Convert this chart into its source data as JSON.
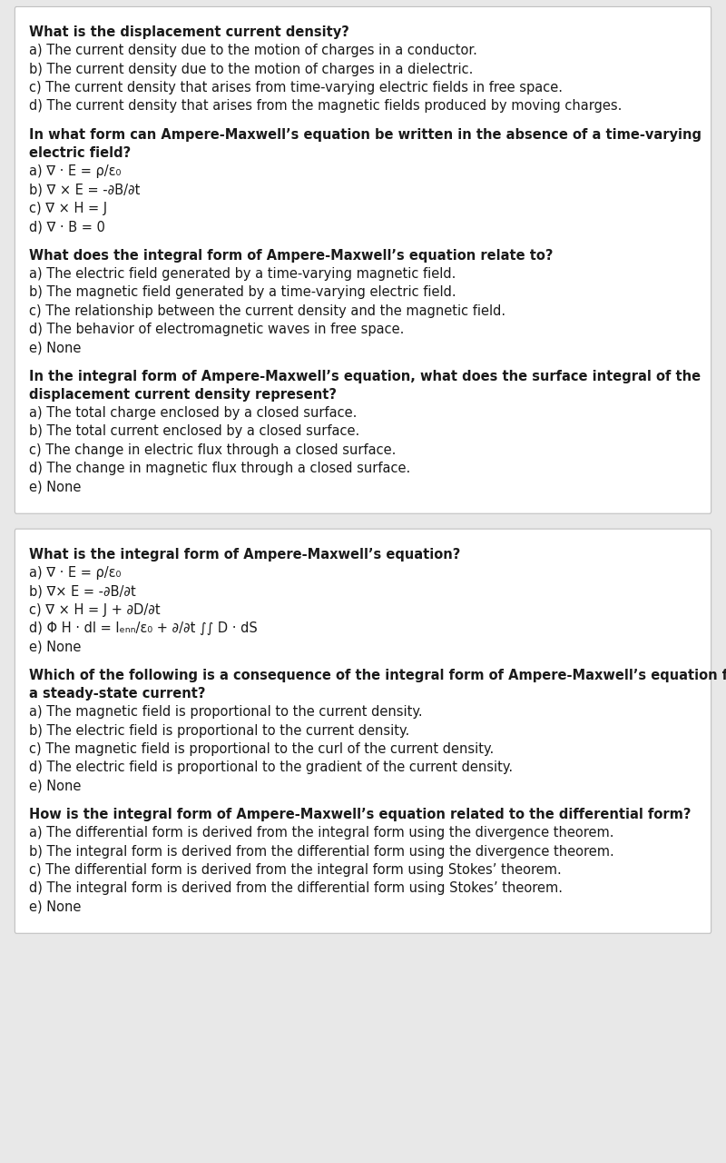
{
  "bg_color": "#e8e8e8",
  "box1_color": "#ffffff",
  "box2_color": "#ffffff",
  "text_color": "#1a1a1a",
  "font_size": 10.5,
  "box1_content": [
    {
      "text": "What is the displacement current density?",
      "bold": true
    },
    {
      "text": "a) The current density due to the motion of charges in a conductor.",
      "bold": false
    },
    {
      "text": "b) The current density due to the motion of charges in a dielectric.",
      "bold": false
    },
    {
      "text": "c) The current density that arises from time-varying electric fields in free space.",
      "bold": false
    },
    {
      "text": "d) The current density that arises from the magnetic fields produced by moving charges.",
      "bold": false
    },
    {
      "text": "",
      "bold": false
    },
    {
      "text": "In what form can Ampere-Maxwell’s equation be written in the absence of a time-varying electric field?",
      "bold": true
    },
    {
      "text": "a) ∇ · E = ρ/ε₀",
      "bold": false
    },
    {
      "text": "b) ∇ × E = -∂B/∂t",
      "bold": false
    },
    {
      "text": "c) ∇ × H = J",
      "bold": false
    },
    {
      "text": "d) ∇ · B = 0",
      "bold": false
    },
    {
      "text": "",
      "bold": false
    },
    {
      "text": "What does the integral form of Ampere-Maxwell’s equation relate to?",
      "bold": true
    },
    {
      "text": "a) The electric field generated by a time-varying magnetic field.",
      "bold": false
    },
    {
      "text": "b) The magnetic field generated by a time-varying electric field.",
      "bold": false
    },
    {
      "text": "c) The relationship between the current density and the magnetic field.",
      "bold": false
    },
    {
      "text": "d) The behavior of electromagnetic waves in free space.",
      "bold": false
    },
    {
      "text": "e) None",
      "bold": false
    },
    {
      "text": "",
      "bold": false
    },
    {
      "text": "In the integral form of Ampere-Maxwell’s equation, what does the surface integral of the displacement current density represent?",
      "bold": true
    },
    {
      "text": "a) The total charge enclosed by a closed surface.",
      "bold": false
    },
    {
      "text": "b) The total current enclosed by a closed surface.",
      "bold": false
    },
    {
      "text": "c) The change in electric flux through a closed surface.",
      "bold": false
    },
    {
      "text": "d) The change in magnetic flux through a closed surface.",
      "bold": false
    },
    {
      "text": "e) None",
      "bold": false
    }
  ],
  "box2_content": [
    {
      "text": "What is the integral form of Ampere-Maxwell’s equation?",
      "bold": true
    },
    {
      "text": "a) ∇ · E = ρ/ε₀",
      "bold": false
    },
    {
      "text": "b) ∇× E = -∂B/∂t",
      "bold": false
    },
    {
      "text": "c) ∇ × H = J + ∂D/∂t",
      "bold": false
    },
    {
      "text": "d) Φ H · dl = Iₑₙₙ/ε₀ + ∂/∂t ∫∫ D · dS",
      "bold": false
    },
    {
      "text": "e) None",
      "bold": false
    },
    {
      "text": "",
      "bold": false
    },
    {
      "text": "Which of the following is a consequence of the integral form of Ampere-Maxwell’s equation for a steady-state current?",
      "bold": true
    },
    {
      "text": "a) The magnetic field is proportional to the current density.",
      "bold": false
    },
    {
      "text": "b) The electric field is proportional to the current density.",
      "bold": false
    },
    {
      "text": "c) The magnetic field is proportional to the curl of the current density.",
      "bold": false
    },
    {
      "text": "d) The electric field is proportional to the gradient of the current density.",
      "bold": false
    },
    {
      "text": "e) None",
      "bold": false
    },
    {
      "text": "",
      "bold": false
    },
    {
      "text": "How is the integral form of Ampere-Maxwell’s equation related to the differential form?",
      "bold": true
    },
    {
      "text": "a) The differential form is derived from the integral form using the divergence theorem.",
      "bold": false
    },
    {
      "text": "b) The integral form is derived from the differential form using the divergence theorem.",
      "bold": false
    },
    {
      "text": "c) The differential form is derived from the integral form using Stokes’ theorem.",
      "bold": false
    },
    {
      "text": "d) The integral form is derived from the differential form using Stokes’ theorem.",
      "bold": false
    },
    {
      "text": "e) None",
      "bold": false
    }
  ]
}
